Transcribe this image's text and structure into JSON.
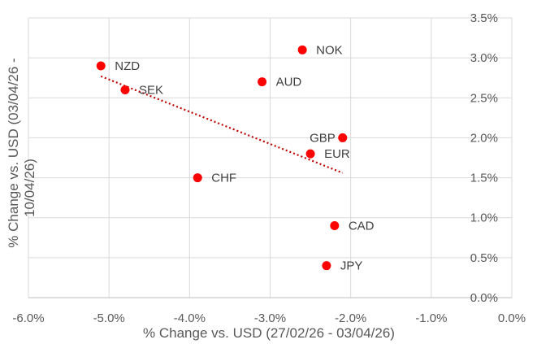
{
  "chart_data": {
    "type": "scatter",
    "title": "",
    "xlabel": "% Change vs. USD (27/02/26 - 03/04/26)",
    "ylabel_lines": [
      "% Change vs. USD (03/04/26 -",
      "10/04/26)"
    ],
    "xlim": [
      -6.0,
      0.0
    ],
    "ylim": [
      0.0,
      3.5
    ],
    "x_ticks": [
      -6.0,
      -5.0,
      -4.0,
      -3.0,
      -2.0,
      -1.0,
      0.0
    ],
    "x_tick_labels": [
      "-6.0%",
      "-5.0%",
      "-4.0%",
      "-3.0%",
      "-2.0%",
      "-1.0%",
      "0.0%"
    ],
    "y_ticks": [
      0.0,
      0.5,
      1.0,
      1.5,
      2.0,
      2.5,
      3.0,
      3.5
    ],
    "y_tick_labels": [
      "0.0%",
      "0.5%",
      "1.0%",
      "1.5%",
      "2.0%",
      "2.5%",
      "3.0%",
      "3.5%"
    ],
    "y_axis_position": "right",
    "grid": true,
    "marker_color": "#ff0000",
    "trendline_color": "#c00000",
    "trendline": {
      "style": "dotted",
      "x": [
        -5.1,
        -2.1
      ],
      "y": [
        2.77,
        1.56
      ]
    },
    "points": [
      {
        "label": "NZD",
        "x": -5.1,
        "y": 2.9
      },
      {
        "label": "SEK",
        "x": -4.8,
        "y": 2.6
      },
      {
        "label": "NOK",
        "x": -2.6,
        "y": 3.1
      },
      {
        "label": "AUD",
        "x": -3.1,
        "y": 2.7
      },
      {
        "label": "GBP",
        "x": -2.1,
        "y": 2.0
      },
      {
        "label": "EUR",
        "x": -2.5,
        "y": 1.8
      },
      {
        "label": "CHF",
        "x": -3.9,
        "y": 1.5
      },
      {
        "label": "CAD",
        "x": -2.2,
        "y": 0.9
      },
      {
        "label": "JPY",
        "x": -2.3,
        "y": 0.4
      }
    ]
  }
}
